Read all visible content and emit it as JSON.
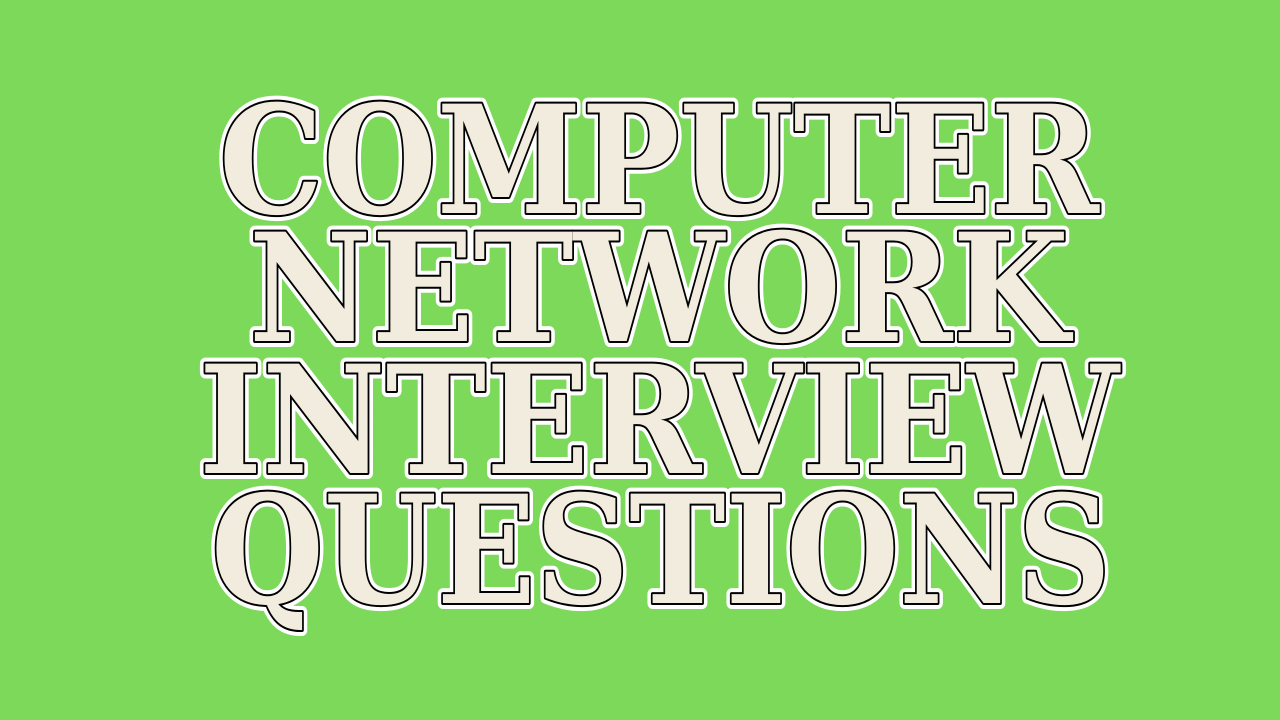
{
  "colors": {
    "background": "#7dd95a",
    "letter_fill": "#f2ecdf",
    "letter_outline": "#000000",
    "letter_halo": "#ffffff"
  },
  "title": {
    "lines": [
      "COMPUTER",
      "NETWORK",
      "INTERVIEW",
      "QUESTIONS"
    ]
  }
}
